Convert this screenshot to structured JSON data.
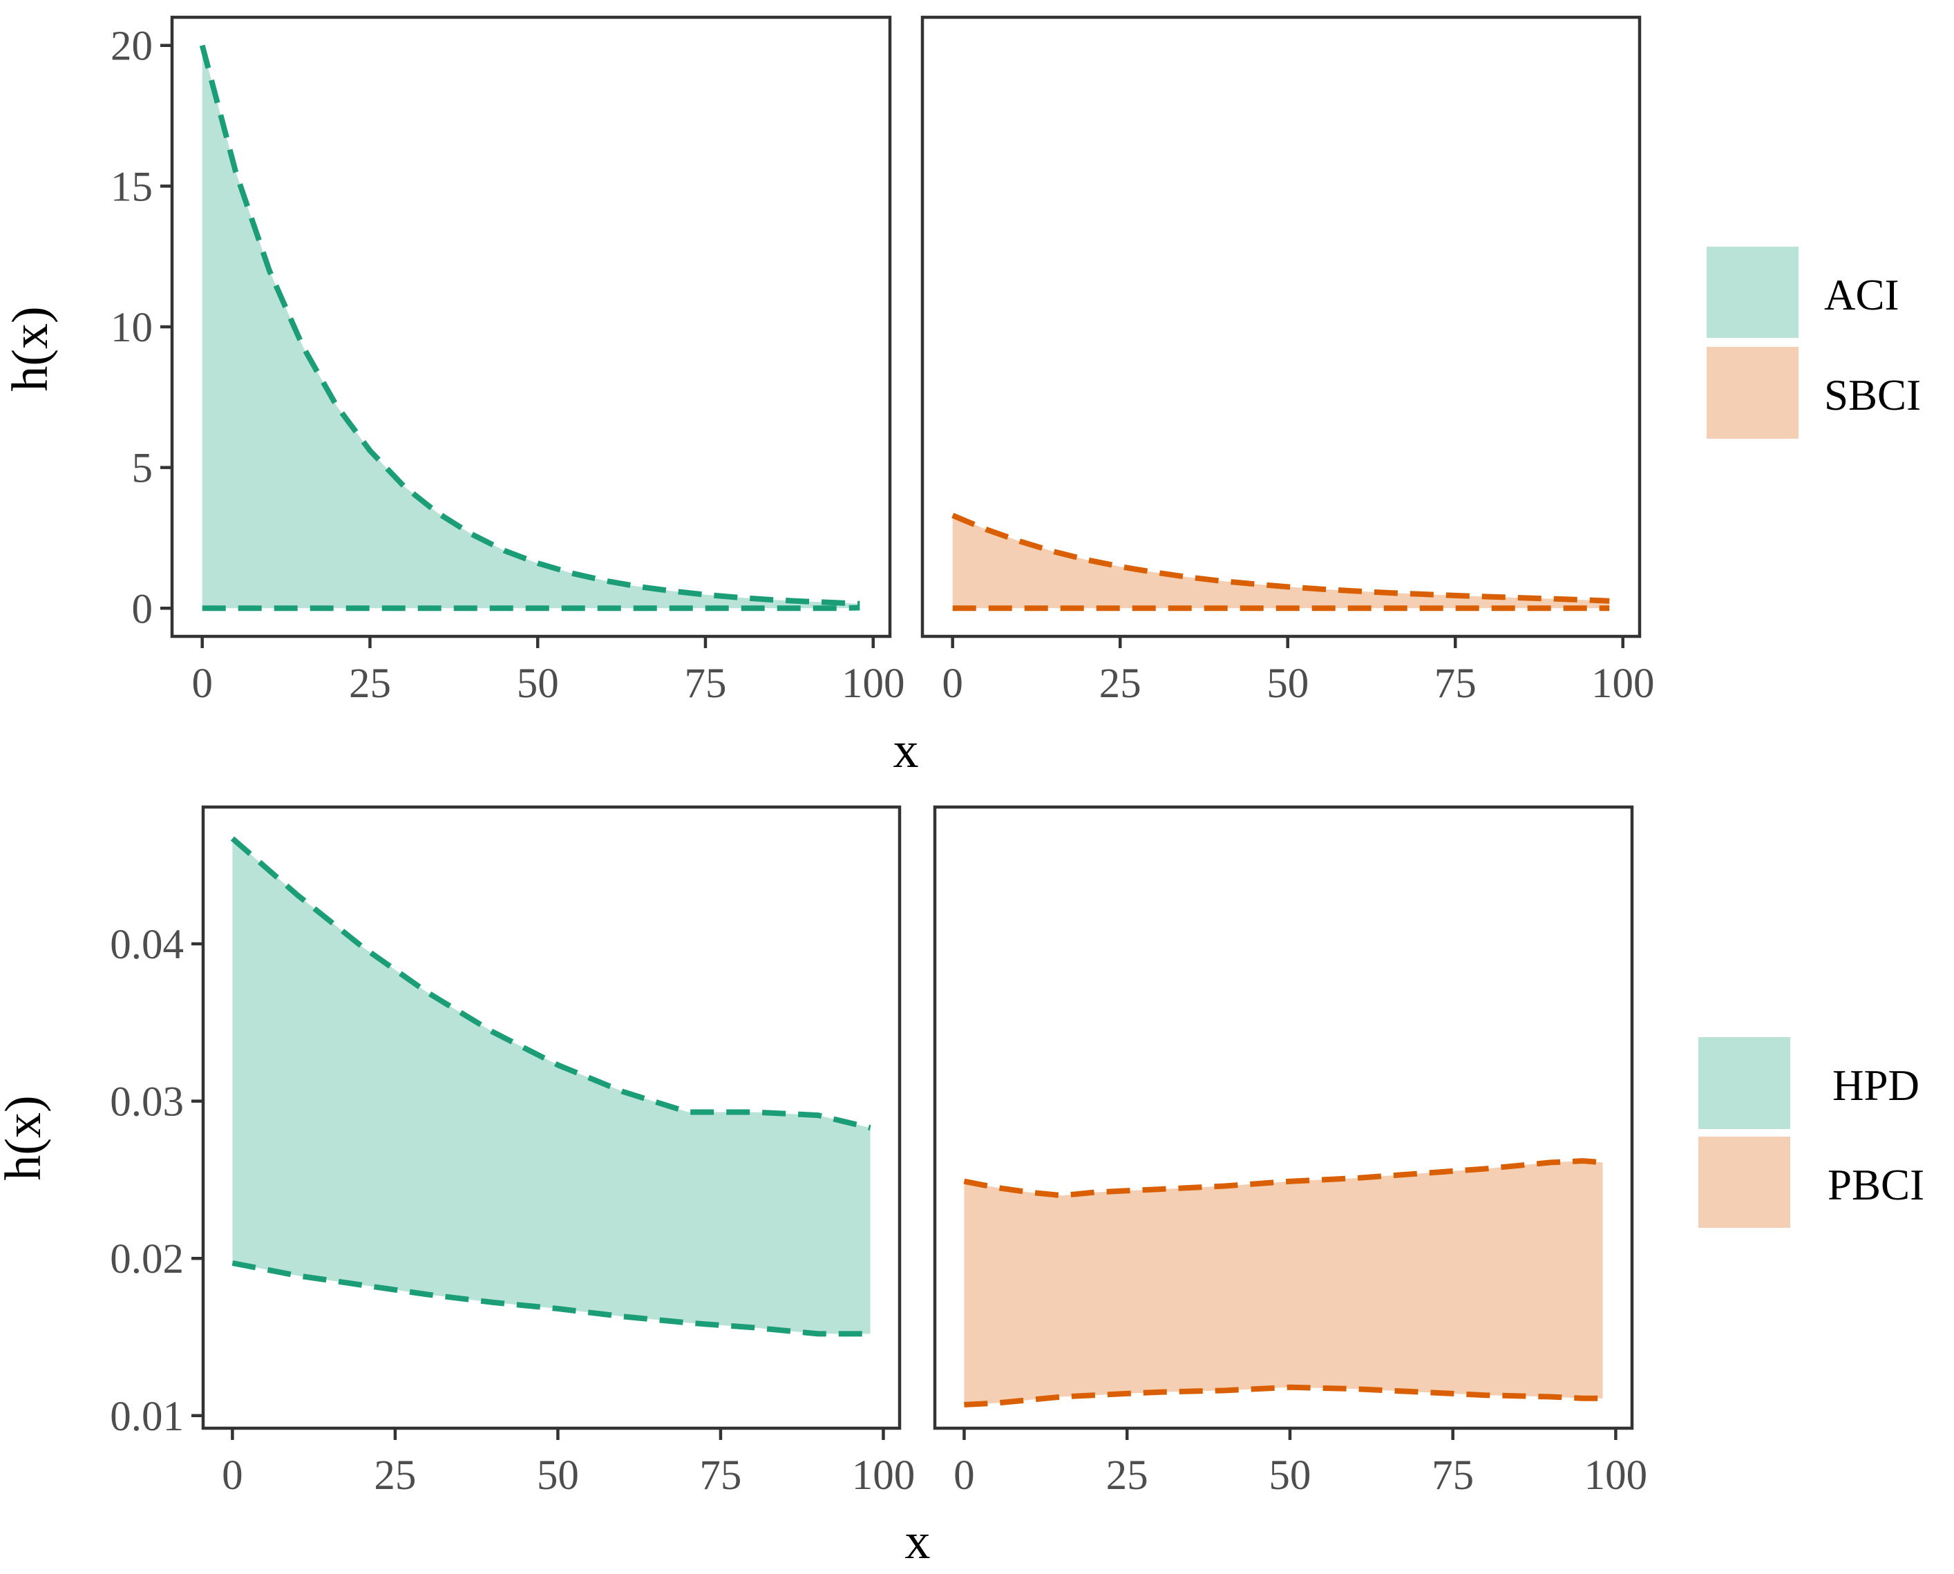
{
  "colors": {
    "green_line": "#1b9e77",
    "green_fill": "#b9e3d7",
    "orange_line": "#d95f02",
    "orange_fill": "#f5cfb3"
  },
  "rows": [
    {
      "ylabel": "h(x)",
      "xlabel": "x",
      "legend": [
        {
          "label": "ACI",
          "color": "#b9e3d7"
        },
        {
          "label": "SBCI",
          "color": "#f5cfb3"
        }
      ]
    },
    {
      "ylabel": "h(x)",
      "xlabel": "x",
      "legend": [
        {
          "label": "HPD",
          "color": "#b9e3d7"
        },
        {
          "label": "PBCI",
          "color": "#f5cfb3"
        }
      ]
    }
  ],
  "chart_data": [
    {
      "type": "area",
      "panel": "top-left",
      "series_name": "ACI",
      "xlim": [
        -4.5,
        102.5
      ],
      "ylim": [
        -1,
        21
      ],
      "x_ticks": [
        0,
        25,
        50,
        75,
        100
      ],
      "y_ticks": [
        0,
        5,
        10,
        15,
        20
      ],
      "y_tick_labels": [
        "0",
        "5",
        "10",
        "15",
        "20"
      ],
      "x": [
        0,
        5,
        10,
        15,
        20,
        25,
        30,
        35,
        40,
        45,
        50,
        55,
        60,
        65,
        70,
        75,
        80,
        85,
        90,
        95,
        98
      ],
      "upper": [
        20.0,
        15.5,
        12.0,
        9.3,
        7.2,
        5.6,
        4.35,
        3.4,
        2.65,
        2.05,
        1.6,
        1.25,
        0.98,
        0.77,
        0.61,
        0.48,
        0.38,
        0.3,
        0.24,
        0.19,
        0.16
      ],
      "lower": [
        0,
        0,
        0,
        0,
        0,
        0,
        0,
        0,
        0,
        0,
        0,
        0,
        0,
        0,
        0,
        0,
        0,
        0,
        0,
        0,
        0.02
      ],
      "color": "#1b9e77",
      "fill": "#b9e3d7"
    },
    {
      "type": "area",
      "panel": "top-right",
      "series_name": "SBCI",
      "xlim": [
        -4.5,
        102.5
      ],
      "ylim": [
        -1,
        21
      ],
      "x_ticks": [
        0,
        25,
        50,
        75,
        100
      ],
      "x": [
        0,
        5,
        10,
        15,
        20,
        25,
        30,
        35,
        40,
        45,
        50,
        55,
        60,
        65,
        70,
        75,
        80,
        85,
        90,
        95,
        98
      ],
      "upper": [
        3.3,
        2.8,
        2.38,
        2.02,
        1.72,
        1.48,
        1.28,
        1.11,
        0.97,
        0.86,
        0.76,
        0.68,
        0.61,
        0.55,
        0.5,
        0.45,
        0.41,
        0.37,
        0.33,
        0.29,
        0.26
      ],
      "lower": [
        0,
        0,
        0,
        0,
        0,
        0,
        0,
        0,
        0,
        0,
        0,
        0,
        0,
        0,
        0,
        0,
        0,
        0,
        0,
        0,
        0
      ],
      "color": "#d95f02",
      "fill": "#f5cfb3"
    },
    {
      "type": "area",
      "panel": "bottom-left",
      "series_name": "HPD",
      "xlim": [
        -4.5,
        102.5
      ],
      "ylim": [
        0.0092,
        0.0487
      ],
      "x_ticks": [
        0,
        25,
        50,
        75,
        100
      ],
      "y_ticks": [
        0.01,
        0.02,
        0.03,
        0.04
      ],
      "y_tick_labels": [
        "0.01",
        "0.02",
        "0.03",
        "0.04"
      ],
      "x": [
        0,
        10,
        20,
        30,
        40,
        50,
        60,
        70,
        80,
        90,
        98
      ],
      "upper": [
        0.0467,
        0.0431,
        0.0398,
        0.0369,
        0.0344,
        0.0323,
        0.0306,
        0.0293,
        0.0293,
        0.0291,
        0.0283
      ],
      "lower": [
        0.0197,
        0.0189,
        0.0183,
        0.0177,
        0.0172,
        0.0168,
        0.0163,
        0.0159,
        0.0156,
        0.0152,
        0.0152
      ],
      "color": "#1b9e77",
      "fill": "#b9e3d7"
    },
    {
      "type": "area",
      "panel": "bottom-right",
      "series_name": "PBCI",
      "xlim": [
        -4.5,
        102.5
      ],
      "ylim": [
        0.0092,
        0.0487
      ],
      "x_ticks": [
        0,
        25,
        50,
        75,
        100
      ],
      "x": [
        0,
        5,
        10,
        15,
        20,
        25,
        30,
        40,
        50,
        60,
        70,
        80,
        90,
        95,
        98
      ],
      "upper": [
        0.0249,
        0.0245,
        0.0242,
        0.024,
        0.0242,
        0.0243,
        0.0244,
        0.0246,
        0.0249,
        0.0251,
        0.0254,
        0.0257,
        0.0261,
        0.0262,
        0.0261
      ],
      "lower": [
        0.0107,
        0.0108,
        0.011,
        0.0112,
        0.0113,
        0.0114,
        0.0115,
        0.0116,
        0.0118,
        0.0117,
        0.0115,
        0.0113,
        0.0112,
        0.0111,
        0.0111
      ],
      "color": "#d95f02",
      "fill": "#f5cfb3"
    }
  ]
}
